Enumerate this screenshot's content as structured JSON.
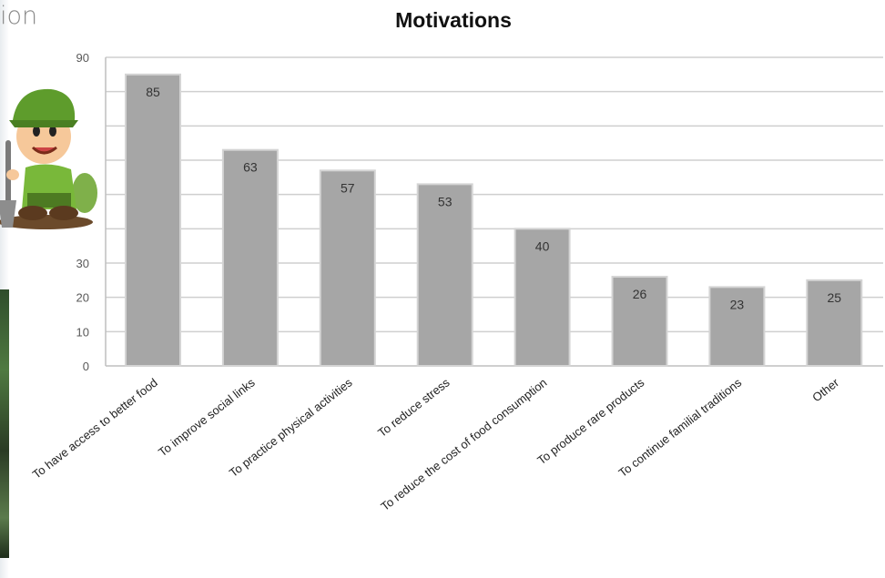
{
  "page": {
    "fragment_text": "ion"
  },
  "chart_data": {
    "type": "bar",
    "title": "Motivations",
    "xlabel": "",
    "ylabel": "",
    "ylim": [
      0,
      90
    ],
    "yticks": [
      0,
      10,
      20,
      30,
      90
    ],
    "grid": true,
    "legend": "none",
    "categories": [
      "To have access to better food",
      "To improve social links",
      "To practice physical activities",
      "To reduce stress",
      "To reduce the cost of food consumption",
      "To produce rare products",
      "To continue familial traditions",
      "Other"
    ],
    "values": [
      85,
      63,
      57,
      53,
      40,
      26,
      23,
      25
    ],
    "colors": {
      "bar": "#a6a6a6",
      "bar_edge": "#d4d4d4",
      "grid": "#cfcfcf",
      "axis": "#bfbfbf"
    }
  },
  "mascot": {
    "icon": "gardener-mascot-icon"
  }
}
